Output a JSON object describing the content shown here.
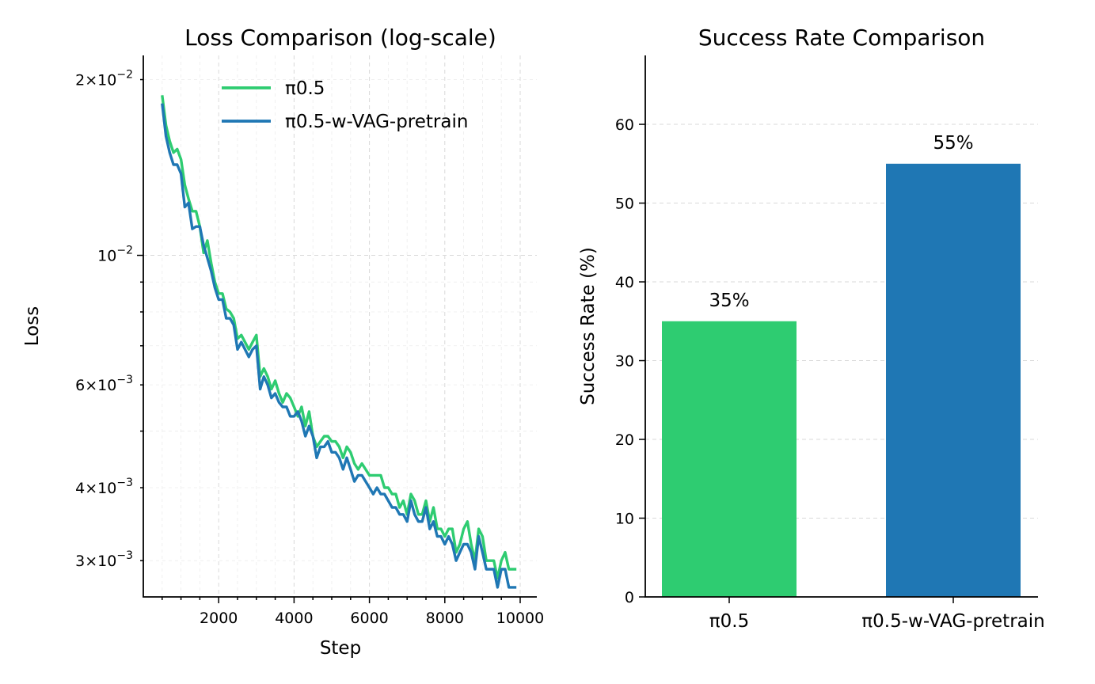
{
  "chart_data": [
    {
      "type": "line",
      "title": "Loss Comparison (log-scale)",
      "xlabel": "Step",
      "ylabel": "Loss",
      "yscale": "log",
      "xlim": [
        0,
        10000
      ],
      "ylim": [
        0.0026,
        0.022
      ],
      "xticks": [
        2000,
        4000,
        6000,
        8000,
        10000
      ],
      "xtick_labels": [
        "2000",
        "4000",
        "6000",
        "8000",
        "10000"
      ],
      "yticks": [
        {
          "value": 0.02,
          "base": "2",
          "exp": "−2"
        },
        {
          "value": 0.01,
          "base": "",
          "exp": "−2"
        },
        {
          "value": 0.006,
          "base": "6",
          "exp": "−3"
        },
        {
          "value": 0.004,
          "base": "4",
          "exp": "−3"
        },
        {
          "value": 0.003,
          "base": "3",
          "exp": "−3"
        }
      ],
      "grid": true,
      "legend": "top-right",
      "x": [
        500,
        600,
        700,
        800,
        900,
        1000,
        1100,
        1200,
        1300,
        1400,
        1500,
        1600,
        1700,
        1800,
        1900,
        2000,
        2100,
        2200,
        2300,
        2400,
        2500,
        2600,
        2700,
        2800,
        2900,
        3000,
        3100,
        3200,
        3300,
        3400,
        3500,
        3600,
        3700,
        3800,
        3900,
        4000,
        4100,
        4200,
        4300,
        4400,
        4500,
        4600,
        4700,
        4800,
        4900,
        5000,
        5100,
        5200,
        5300,
        5400,
        5500,
        5600,
        5700,
        5800,
        5900,
        6000,
        6100,
        6200,
        6300,
        6400,
        6500,
        6600,
        6700,
        6800,
        6900,
        7000,
        7100,
        7200,
        7300,
        7400,
        7500,
        7600,
        7700,
        7800,
        7900,
        8000,
        8100,
        8200,
        8300,
        8400,
        8500,
        8600,
        8700,
        8800,
        8900,
        9000,
        9100,
        9200,
        9300,
        9400,
        9500,
        9600,
        9700,
        9800,
        9900
      ],
      "series": [
        {
          "name": "π0.5",
          "color": "#2ecc71",
          "values": [
            0.0188,
            0.0167,
            0.0157,
            0.015,
            0.0152,
            0.0146,
            0.0132,
            0.0125,
            0.0119,
            0.0119,
            0.0112,
            0.0101,
            0.0106,
            0.0097,
            0.009,
            0.0086,
            0.0086,
            0.0081,
            0.008,
            0.0078,
            0.0072,
            0.0073,
            0.0071,
            0.0069,
            0.0071,
            0.0073,
            0.0062,
            0.0064,
            0.0062,
            0.0059,
            0.0061,
            0.0058,
            0.0056,
            0.0058,
            0.0057,
            0.0055,
            0.0053,
            0.0055,
            0.0051,
            0.0054,
            0.0049,
            0.0047,
            0.0048,
            0.0049,
            0.0049,
            0.0048,
            0.0048,
            0.0047,
            0.0045,
            0.0047,
            0.0046,
            0.0044,
            0.0043,
            0.0044,
            0.0043,
            0.0042,
            0.0042,
            0.0042,
            0.0042,
            0.004,
            0.004,
            0.0039,
            0.0039,
            0.0037,
            0.0038,
            0.0036,
            0.0039,
            0.0038,
            0.0036,
            0.0036,
            0.0038,
            0.0035,
            0.0037,
            0.0034,
            0.0034,
            0.0033,
            0.0034,
            0.0034,
            0.0031,
            0.0032,
            0.0034,
            0.0035,
            0.0032,
            0.003,
            0.0034,
            0.0033,
            0.003,
            0.003,
            0.003,
            0.0028,
            0.003,
            0.0031,
            0.0029,
            0.0029,
            0.0029
          ]
        },
        {
          "name": "π0.5-w-VAG-pretrain",
          "color": "#1f77b4",
          "values": [
            0.0182,
            0.016,
            0.015,
            0.0143,
            0.0143,
            0.0138,
            0.0121,
            0.0123,
            0.0111,
            0.0112,
            0.0112,
            0.0104,
            0.0099,
            0.0094,
            0.0088,
            0.0084,
            0.0084,
            0.0078,
            0.0078,
            0.0076,
            0.0069,
            0.0071,
            0.0069,
            0.0067,
            0.0069,
            0.007,
            0.0059,
            0.0062,
            0.006,
            0.0057,
            0.0058,
            0.0056,
            0.0055,
            0.0055,
            0.0053,
            0.0053,
            0.0054,
            0.0052,
            0.0049,
            0.0051,
            0.0049,
            0.0045,
            0.0047,
            0.0047,
            0.0048,
            0.0046,
            0.0046,
            0.0045,
            0.0043,
            0.0045,
            0.0043,
            0.0041,
            0.0042,
            0.0042,
            0.0041,
            0.004,
            0.0039,
            0.004,
            0.0039,
            0.0039,
            0.0038,
            0.0037,
            0.0037,
            0.0036,
            0.0036,
            0.0035,
            0.0038,
            0.0036,
            0.0035,
            0.0035,
            0.0037,
            0.0034,
            0.0035,
            0.0033,
            0.0033,
            0.0032,
            0.0033,
            0.0032,
            0.003,
            0.0031,
            0.0032,
            0.0032,
            0.0031,
            0.0029,
            0.0033,
            0.0031,
            0.0029,
            0.0029,
            0.0029,
            0.0027,
            0.0029,
            0.0029,
            0.0027,
            0.0027,
            0.0027
          ]
        }
      ]
    },
    {
      "type": "bar",
      "title": "Success Rate Comparison",
      "xlabel": "",
      "ylabel": "Success Rate (%)",
      "ylim": [
        0,
        68.75
      ],
      "yticks": [
        0,
        10,
        20,
        30,
        40,
        50,
        60
      ],
      "grid": true,
      "categories": [
        "π0.5",
        "π0.5-w-VAG-pretrain"
      ],
      "values": [
        35,
        55
      ],
      "data_labels": [
        "35%",
        "55%"
      ],
      "colors": [
        "#2ecc71",
        "#1f77b4"
      ]
    }
  ]
}
